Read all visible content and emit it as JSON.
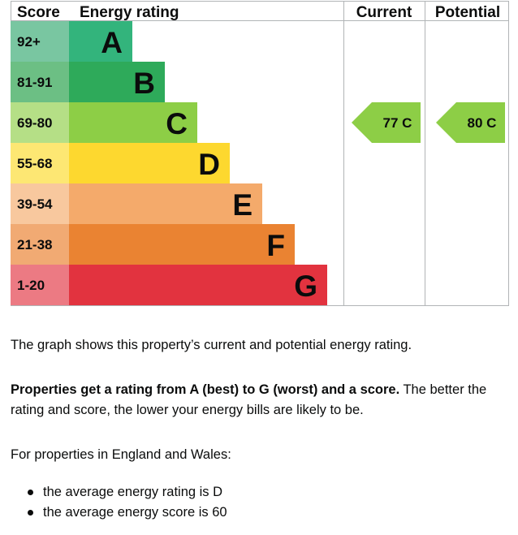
{
  "chart_data": {
    "type": "bar",
    "columns": {
      "score": "Score",
      "rating": "Energy rating",
      "current": "Current",
      "potential": "Potential"
    },
    "bands": [
      {
        "band": "A",
        "range": "92+",
        "color": "#33b47c",
        "score_color": "#79c6a1"
      },
      {
        "band": "B",
        "range": "81-91",
        "color": "#2eaa5a",
        "score_color": "#6cbf84"
      },
      {
        "band": "C",
        "range": "69-80",
        "color": "#8dce46",
        "score_color": "#b5df86"
      },
      {
        "band": "D",
        "range": "55-68",
        "color": "#fdd82f",
        "score_color": "#fde773"
      },
      {
        "band": "E",
        "range": "39-54",
        "color": "#f4aa6b",
        "score_color": "#f8c89e"
      },
      {
        "band": "F",
        "range": "21-38",
        "color": "#ea8332",
        "score_color": "#f1aa73"
      },
      {
        "band": "G",
        "range": "1-20",
        "color": "#e2333f",
        "score_color": "#ec7a83"
      }
    ],
    "current": {
      "score": 77,
      "band": "C",
      "label": "77  C"
    },
    "potential": {
      "score": 80,
      "band": "C",
      "label": "80  C"
    },
    "arrow_color": "#8dce46",
    "grid_color": "#b1b4b6"
  },
  "text": {
    "intro": "The graph shows this property’s current and potential energy rating.",
    "explain_bold": "Properties get a rating from A (best) to G (worst) and a score.",
    "explain_rest": " The better the rating and score, the lower your energy bills are likely to be.",
    "region": "For properties in England and Wales:",
    "bullets": [
      "the average energy rating is D",
      "the average energy score is 60"
    ]
  }
}
